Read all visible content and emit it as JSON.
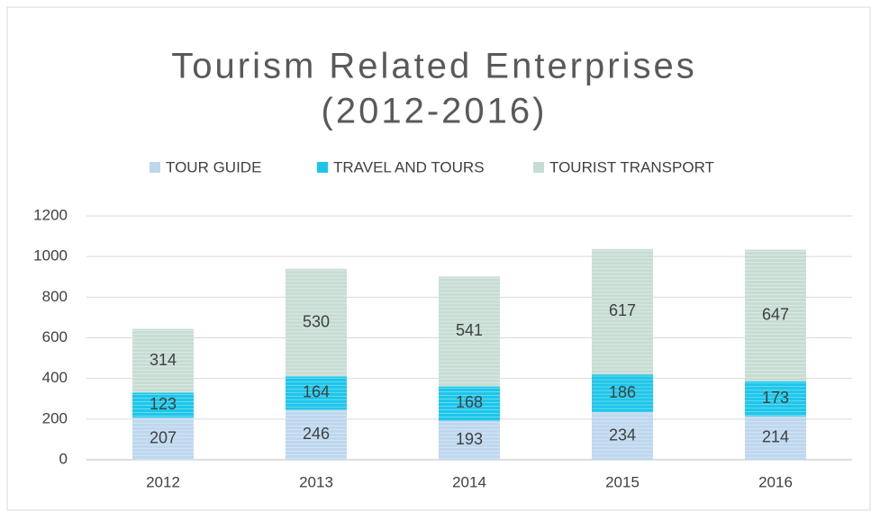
{
  "chart_data": {
    "type": "stacked_bar",
    "title": [
      "Tourism Related Enterprises",
      "(2012-2016)"
    ],
    "categories": [
      "2012",
      "2013",
      "2014",
      "2015",
      "2016"
    ],
    "series": [
      {
        "name": "TOUR GUIDE",
        "color": "#bdd7ee",
        "values": [
          207,
          246,
          193,
          234,
          214
        ]
      },
      {
        "name": "TRAVEL AND TOURS",
        "color": "#1cc6ea",
        "values": [
          123,
          164,
          168,
          186,
          173
        ]
      },
      {
        "name": "TOURIST TRANSPORT",
        "color": "#c7ddd4",
        "values": [
          314,
          530,
          541,
          617,
          647
        ]
      }
    ],
    "ylim": [
      0,
      1200
    ],
    "yticks": [
      0,
      200,
      400,
      600,
      800,
      1000,
      1200
    ],
    "grid": true,
    "legend": "top"
  }
}
